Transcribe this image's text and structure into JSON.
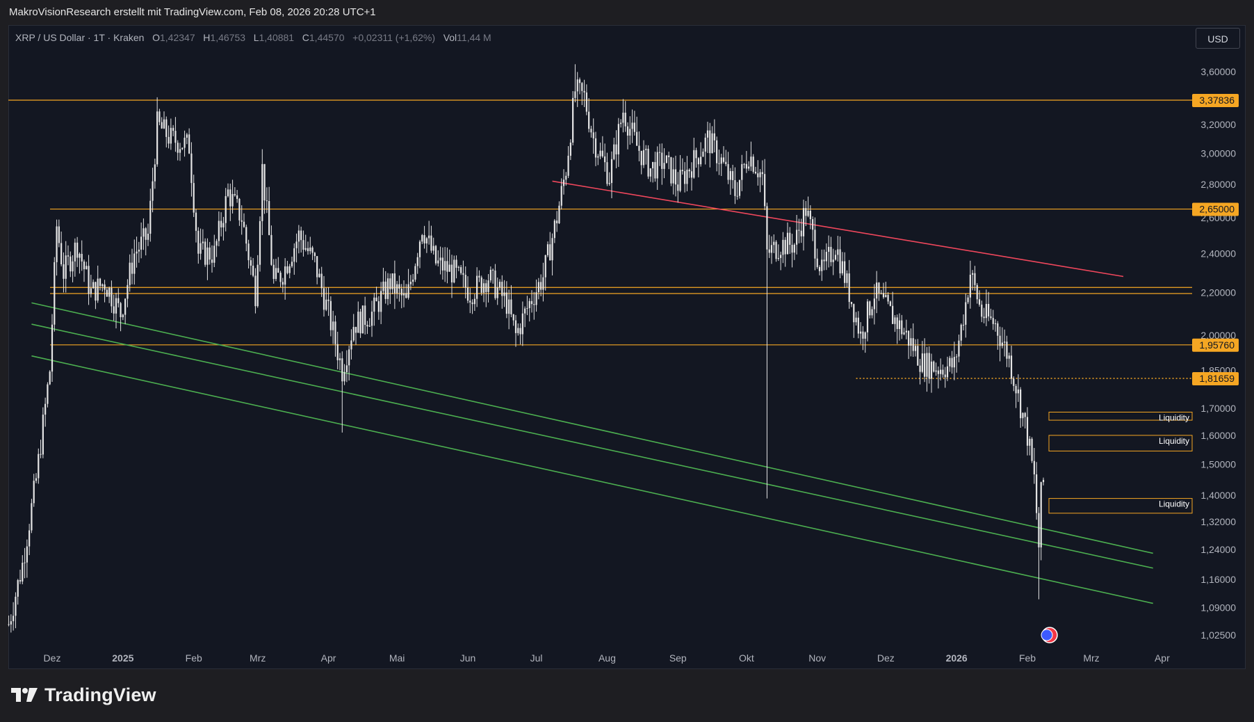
{
  "header": {
    "attribution": "MakroVisionResearch erstellt mit TradingView.com, Feb 08, 2026 20:28 UTC+1"
  },
  "legend": {
    "symbol": "XRP / US Dollar · 1T · Kraken",
    "open_label": "O",
    "open": "1,42347",
    "high_label": "H",
    "high": "1,46753",
    "low_label": "L",
    "low": "1,40881",
    "close_label": "C",
    "close": "1,44570",
    "change": "+0,02311 (+1,62%)",
    "vol_label": "Vol",
    "vol": "11,44 M"
  },
  "currency_button": "USD",
  "branding": {
    "logo_text": "TradingView"
  },
  "colors": {
    "background": "#131722",
    "candle": "#e6e6e6",
    "horizontal_level": "#f5a623",
    "resistance_trend": "#f0475c",
    "channel": "#4caf50",
    "axis_text": "#b2b5be",
    "price_tag": "#f5a623"
  },
  "chart_data": {
    "type": "candlestick",
    "symbol": "XRP/USD",
    "interval": "1T",
    "y_scale": "log",
    "y_ticks": [
      "3,60000",
      "3,20000",
      "3,00000",
      "2,80000",
      "2,60000",
      "2,40000",
      "2,20000",
      "2,00000",
      "1,85000",
      "1,70000",
      "1,60000",
      "1,50000",
      "1,40000",
      "1,32000",
      "1,24000",
      "1,16000",
      "1,09000",
      "1,02500"
    ],
    "x_ticks": [
      "Dez",
      "2025",
      "Feb",
      "Mrz",
      "Apr",
      "Mai",
      "Jun",
      "Jul",
      "Aug",
      "Sep",
      "Okt",
      "Nov",
      "Dez",
      "2026",
      "Feb",
      "Mrz",
      "Apr"
    ],
    "close_path": [
      {
        "x": "2024-11-12",
        "y": 1.05
      },
      {
        "x": "2024-11-18",
        "y": 1.2
      },
      {
        "x": "2024-11-24",
        "y": 1.45
      },
      {
        "x": "2024-11-30",
        "y": 1.85
      },
      {
        "x": "2024-12-03",
        "y": 2.55
      },
      {
        "x": "2024-12-06",
        "y": 2.3
      },
      {
        "x": "2024-12-12",
        "y": 2.45
      },
      {
        "x": "2024-12-18",
        "y": 2.2
      },
      {
        "x": "2024-12-24",
        "y": 2.25
      },
      {
        "x": "2024-12-31",
        "y": 2.1
      },
      {
        "x": "2025-01-06",
        "y": 2.4
      },
      {
        "x": "2025-01-12",
        "y": 2.5
      },
      {
        "x": "2025-01-16",
        "y": 3.2
      },
      {
        "x": "2025-01-22",
        "y": 3.1
      },
      {
        "x": "2025-01-30",
        "y": 3.05
      },
      {
        "x": "2025-02-03",
        "y": 2.4
      },
      {
        "x": "2025-02-10",
        "y": 2.4
      },
      {
        "x": "2025-02-16",
        "y": 2.75
      },
      {
        "x": "2025-02-22",
        "y": 2.6
      },
      {
        "x": "2025-02-28",
        "y": 2.2
      },
      {
        "x": "2025-03-03",
        "y": 2.9
      },
      {
        "x": "2025-03-08",
        "y": 2.25
      },
      {
        "x": "2025-03-12",
        "y": 2.3
      },
      {
        "x": "2025-03-19",
        "y": 2.5
      },
      {
        "x": "2025-03-26",
        "y": 2.35
      },
      {
        "x": "2025-04-01",
        "y": 2.1
      },
      {
        "x": "2025-04-07",
        "y": 1.85
      },
      {
        "x": "2025-04-12",
        "y": 2.05
      },
      {
        "x": "2025-04-20",
        "y": 2.1
      },
      {
        "x": "2025-04-28",
        "y": 2.25
      },
      {
        "x": "2025-05-05",
        "y": 2.15
      },
      {
        "x": "2025-05-12",
        "y": 2.55
      },
      {
        "x": "2025-05-18",
        "y": 2.35
      },
      {
        "x": "2025-05-26",
        "y": 2.3
      },
      {
        "x": "2025-06-02",
        "y": 2.2
      },
      {
        "x": "2025-06-10",
        "y": 2.28
      },
      {
        "x": "2025-06-18",
        "y": 2.15
      },
      {
        "x": "2025-06-22",
        "y": 2.0
      },
      {
        "x": "2025-06-28",
        "y": 2.15
      },
      {
        "x": "2025-07-04",
        "y": 2.28
      },
      {
        "x": "2025-07-10",
        "y": 2.6
      },
      {
        "x": "2025-07-14",
        "y": 2.9
      },
      {
        "x": "2025-07-18",
        "y": 3.45
      },
      {
        "x": "2025-07-22",
        "y": 3.4
      },
      {
        "x": "2025-07-26",
        "y": 3.1
      },
      {
        "x": "2025-08-02",
        "y": 2.85
      },
      {
        "x": "2025-08-08",
        "y": 3.3
      },
      {
        "x": "2025-08-14",
        "y": 3.05
      },
      {
        "x": "2025-08-20",
        "y": 2.9
      },
      {
        "x": "2025-08-26",
        "y": 2.95
      },
      {
        "x": "2025-09-01",
        "y": 2.8
      },
      {
        "x": "2025-09-08",
        "y": 2.95
      },
      {
        "x": "2025-09-14",
        "y": 3.1
      },
      {
        "x": "2025-09-20",
        "y": 2.95
      },
      {
        "x": "2025-09-26",
        "y": 2.75
      },
      {
        "x": "2025-10-02",
        "y": 3.0
      },
      {
        "x": "2025-10-08",
        "y": 2.85
      },
      {
        "x": "2025-10-10",
        "y": 2.4
      },
      {
        "x": "2025-10-16",
        "y": 2.45
      },
      {
        "x": "2025-10-22",
        "y": 2.45
      },
      {
        "x": "2025-10-27",
        "y": 2.65
      },
      {
        "x": "2025-11-03",
        "y": 2.3
      },
      {
        "x": "2025-11-09",
        "y": 2.45
      },
      {
        "x": "2025-11-15",
        "y": 2.2
      },
      {
        "x": "2025-11-20",
        "y": 2.0
      },
      {
        "x": "2025-11-26",
        "y": 2.2
      },
      {
        "x": "2025-12-03",
        "y": 2.1
      },
      {
        "x": "2025-12-10",
        "y": 2.0
      },
      {
        "x": "2025-12-17",
        "y": 1.88
      },
      {
        "x": "2025-12-24",
        "y": 1.86
      },
      {
        "x": "2025-12-31",
        "y": 1.87
      },
      {
        "x": "2026-01-05",
        "y": 2.15
      },
      {
        "x": "2026-01-07",
        "y": 2.3
      },
      {
        "x": "2026-01-12",
        "y": 2.1
      },
      {
        "x": "2026-01-18",
        "y": 2.05
      },
      {
        "x": "2026-01-24",
        "y": 1.9
      },
      {
        "x": "2026-01-28",
        "y": 1.75
      },
      {
        "x": "2026-02-01",
        "y": 1.6
      },
      {
        "x": "2026-02-04",
        "y": 1.45
      },
      {
        "x": "2026-02-06",
        "y": 1.25
      },
      {
        "x": "2026-02-07",
        "y": 1.4
      },
      {
        "x": "2026-02-08",
        "y": 1.4457
      }
    ],
    "wicks": [
      {
        "x": "2025-04-07",
        "low": 1.61
      },
      {
        "x": "2025-10-10",
        "low": 1.39
      },
      {
        "x": "2025-07-18",
        "high": 3.66
      },
      {
        "x": "2025-01-16",
        "high": 3.4
      },
      {
        "x": "2026-02-06",
        "low": 1.11
      }
    ],
    "horizontal_levels": [
      {
        "price": 3.37836,
        "label": "3,37836",
        "style": "solid"
      },
      {
        "price": 2.65,
        "label": "2,65000",
        "style": "solid"
      },
      {
        "price": 2.225,
        "style": "solid"
      },
      {
        "price": 2.195,
        "style": "solid"
      },
      {
        "price": 1.9576,
        "label": "1,95760",
        "style": "solid"
      },
      {
        "price": 1.81659,
        "label": "1,81659",
        "style": "dotted"
      }
    ],
    "zones": [
      {
        "label": "Liquidity",
        "top": 1.685,
        "bottom": 1.655
      },
      {
        "label": "Liquidity",
        "top": 1.6,
        "bottom": 1.545
      },
      {
        "label": "Liquidity",
        "top": 1.39,
        "bottom": 1.345
      }
    ],
    "trendlines": [
      {
        "name": "resistance",
        "color": "red",
        "from": {
          "x": "2025-07-08",
          "y": 2.82
        },
        "to": {
          "x": "2026-03-15",
          "y": 2.28
        }
      },
      {
        "name": "channel-upper",
        "color": "green",
        "from": {
          "x": "2024-11-22",
          "y": 2.15
        },
        "to": {
          "x": "2026-03-28",
          "y": 1.23
        }
      },
      {
        "name": "channel-mid",
        "color": "green",
        "from": {
          "x": "2024-11-22",
          "y": 2.05
        },
        "to": {
          "x": "2026-03-28",
          "y": 1.19
        }
      },
      {
        "name": "channel-lower",
        "color": "green",
        "from": {
          "x": "2024-11-22",
          "y": 1.91
        },
        "to": {
          "x": "2026-03-28",
          "y": 1.1
        }
      }
    ]
  }
}
